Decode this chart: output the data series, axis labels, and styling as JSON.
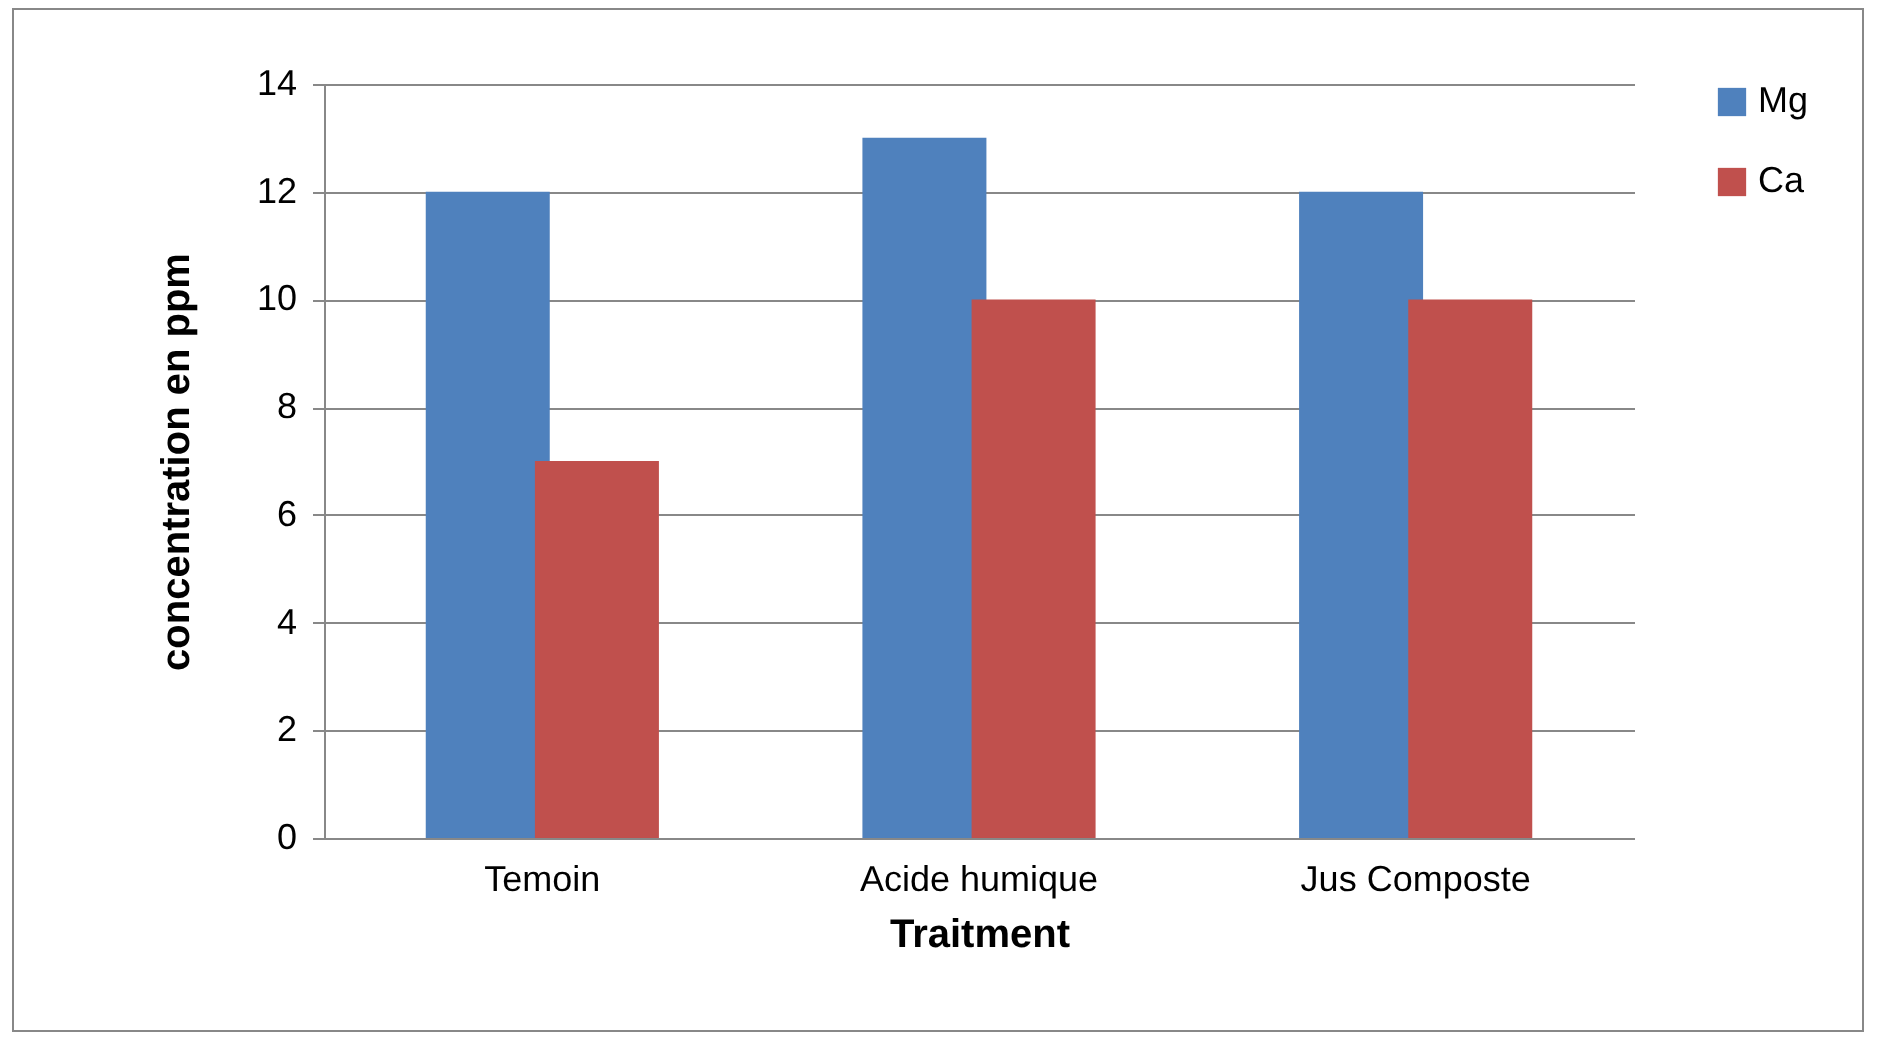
{
  "chart_data": {
    "type": "bar",
    "xlabel": "Traitment",
    "ylabel": "concentration en ppm",
    "categories": [
      "Temoin",
      "Acide humique",
      "Jus Composte"
    ],
    "series": [
      {
        "name": "Mg",
        "color": "#4f81bd",
        "values": [
          12,
          13,
          12
        ]
      },
      {
        "name": "Ca",
        "color": "#c0504d",
        "values": [
          7,
          10,
          10
        ]
      }
    ],
    "ylim": [
      0,
      14
    ],
    "yticks": [
      0,
      2,
      4,
      6,
      8,
      10,
      12,
      14
    ],
    "grid": "y",
    "legend": "right"
  }
}
